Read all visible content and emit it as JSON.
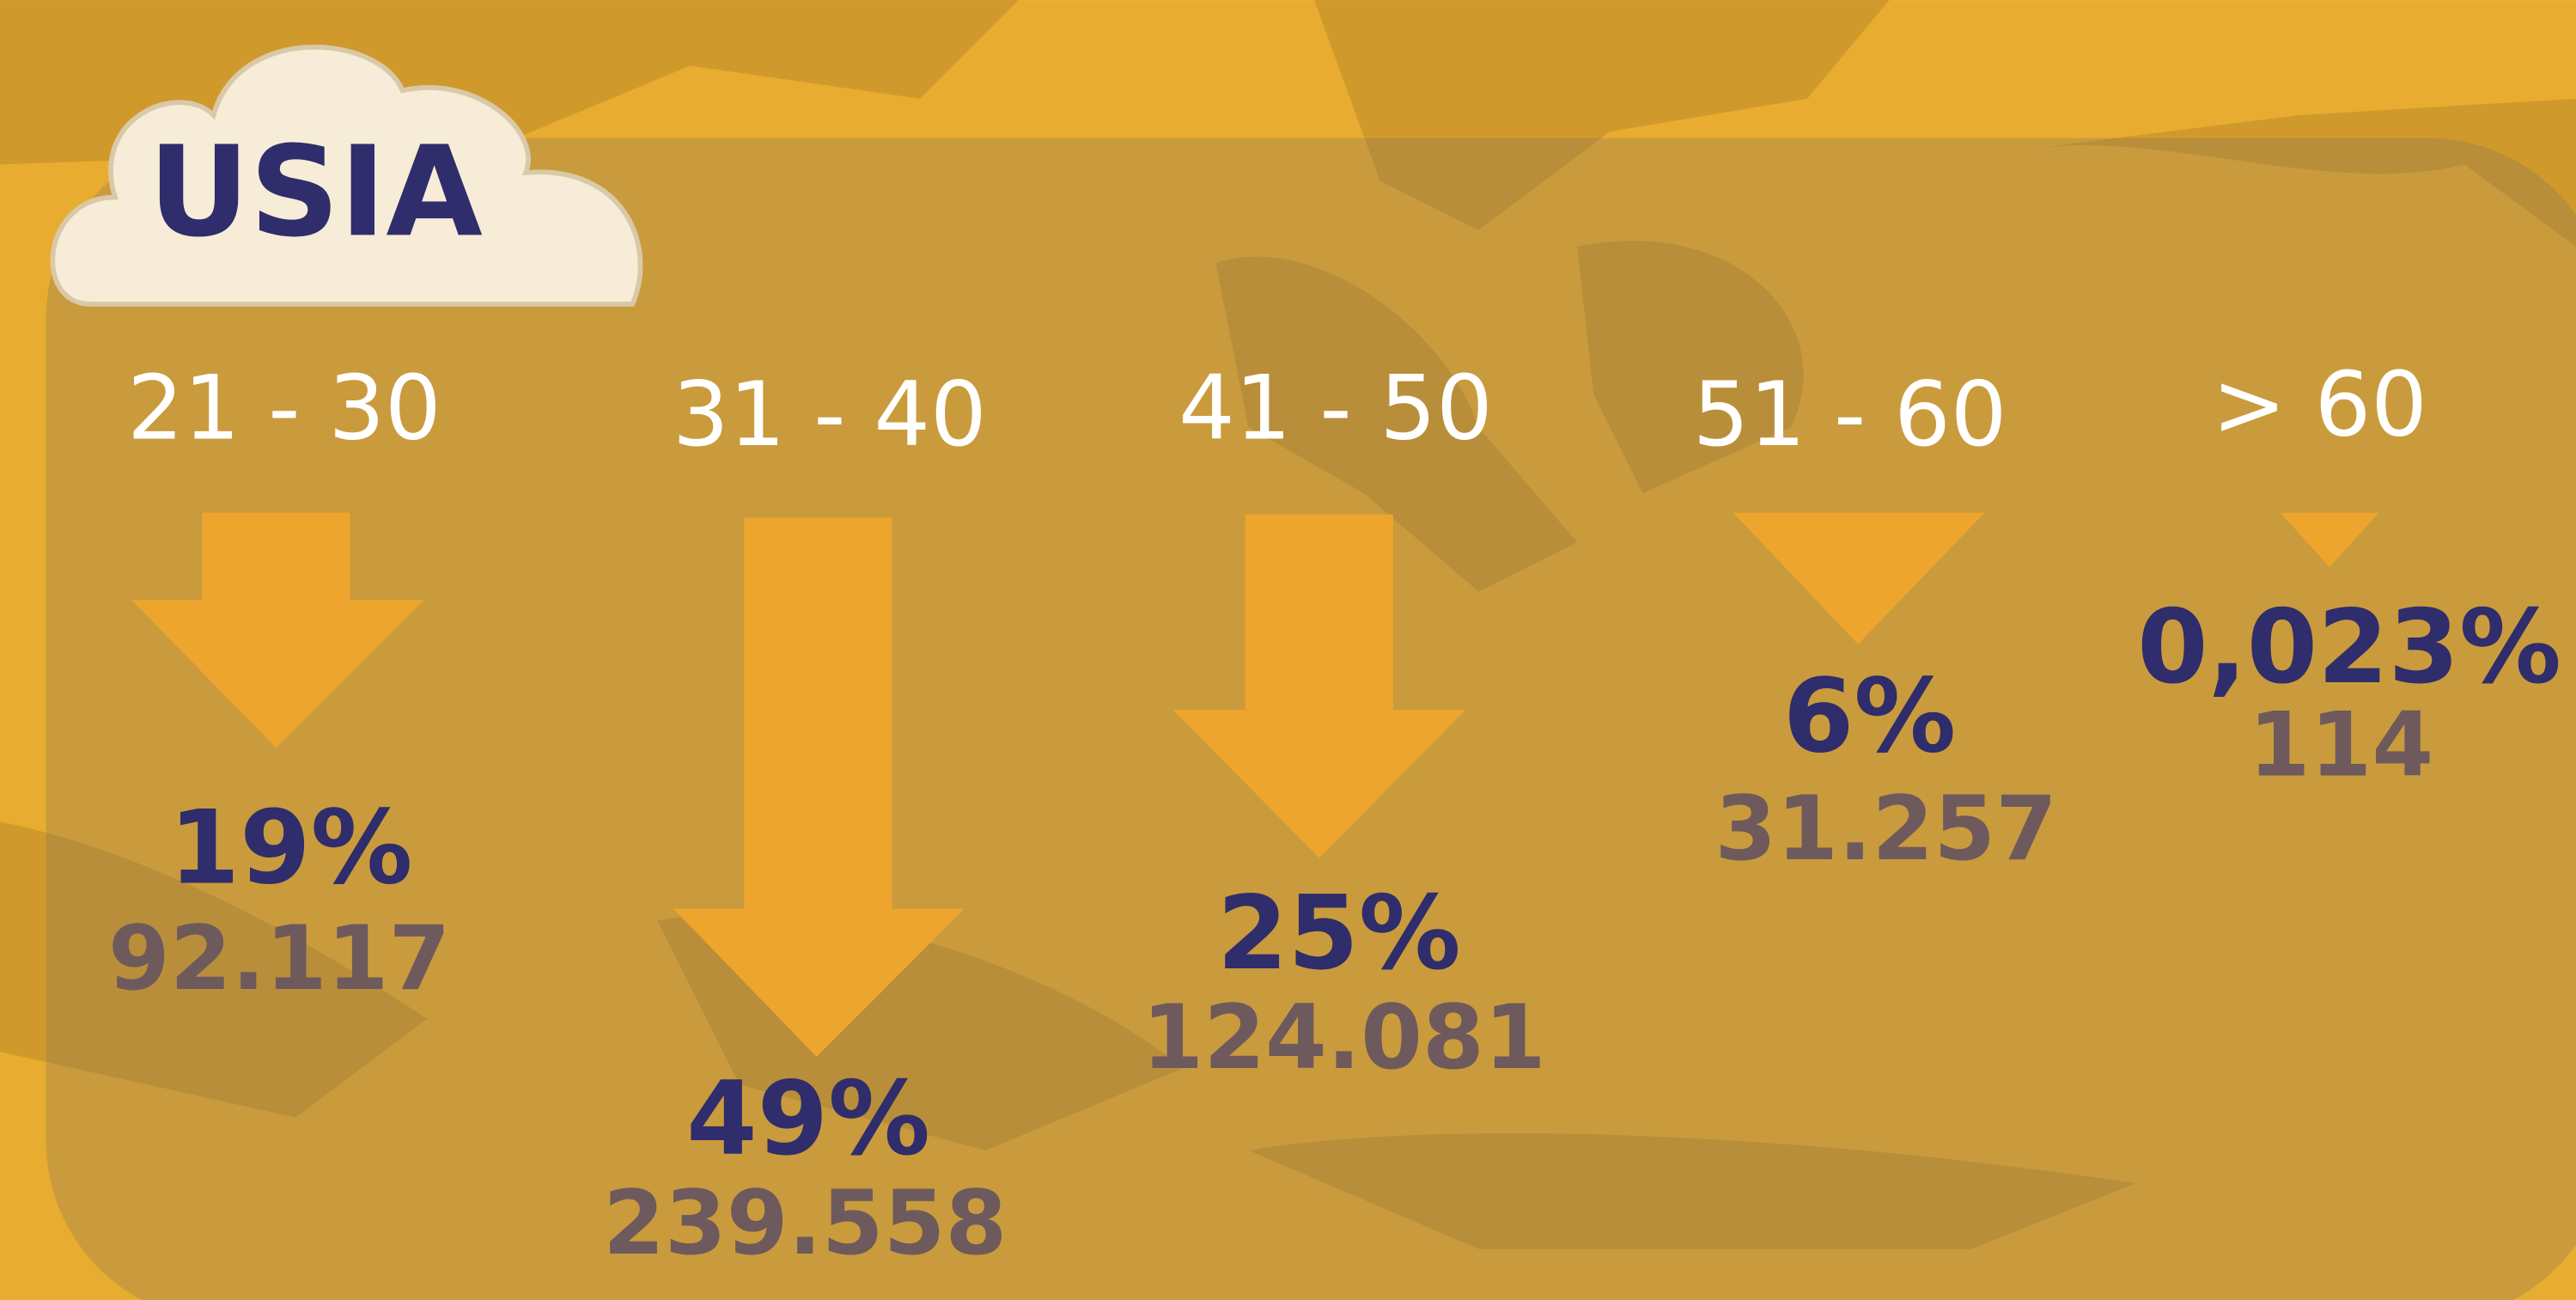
{
  "header": {
    "title": "USIA"
  },
  "groups": [
    {
      "range": "21 - 30",
      "percent": "19%",
      "count": "92.117"
    },
    {
      "range": "31 - 40",
      "percent": "49%",
      "count": "239.558"
    },
    {
      "range": "41 - 50",
      "percent": "25%",
      "count": "124.081"
    },
    {
      "range": "51 - 60",
      "percent": "6%",
      "count": "31.257"
    },
    {
      "range": "> 60",
      "percent": "0,023%",
      "count": "114"
    }
  ]
}
